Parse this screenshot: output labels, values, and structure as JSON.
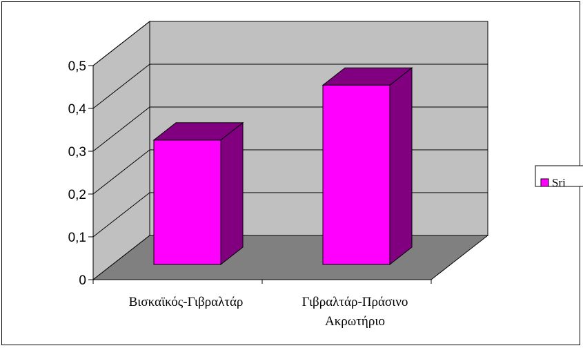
{
  "chart_data": {
    "type": "bar",
    "style": "3d-column",
    "categories": [
      "Βισκαϊκός-Γιβραλτάρ",
      "Γιβραλτάρ-Πράσινο Ακρωτήριο"
    ],
    "category_label_lines": [
      [
        "Βισκαϊκός-Γιβραλτάρ"
      ],
      [
        "Γιβραλτάρ-Πράσινο",
        "Ακρωτήριο"
      ]
    ],
    "series": [
      {
        "name": "Sri",
        "values": [
          0.34,
          0.49
        ],
        "color": "#ff00ff",
        "side_color": "#800080"
      }
    ],
    "ylim": [
      0,
      0.5
    ],
    "yticks": [
      "0",
      "0,1",
      "0,2",
      "0,3",
      "0,4",
      "0,5"
    ],
    "title": "",
    "xlabel": "",
    "ylabel": "",
    "grid": true,
    "legend": "right",
    "colors": {
      "wall": "#c0c0c0",
      "floor": "#808080",
      "gridline": "#000000"
    }
  }
}
